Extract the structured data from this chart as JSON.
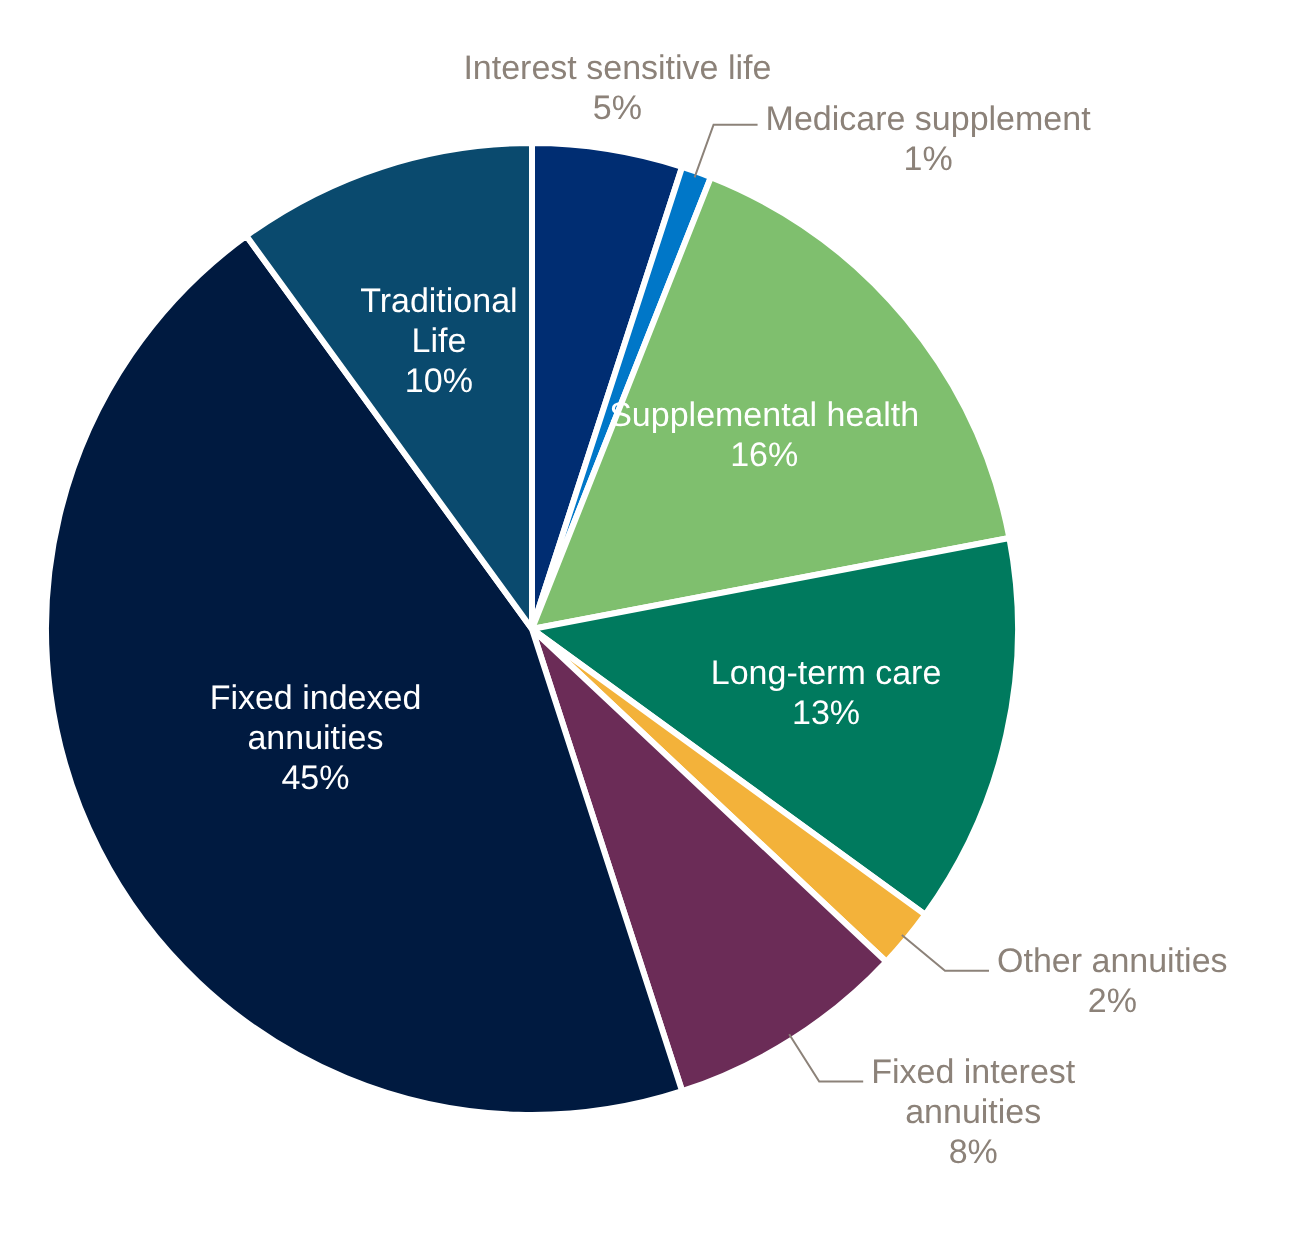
{
  "chart_data": {
    "type": "pie",
    "categories": [
      "Interest sensitive life",
      "Medicare supplement",
      "Supplemental health",
      "Long-term care",
      "Other annuities",
      "Fixed interest\nannuities",
      "Fixed indexed\nannuities",
      "Traditional\nLife"
    ],
    "values": [
      5,
      1,
      16,
      13,
      2,
      8,
      45,
      10
    ],
    "colors": [
      "#002d72",
      "#0077c8",
      "#7fbf6e",
      "#007a5e",
      "#f3b23a",
      "#6b2c57",
      "#001a40",
      "#0a4a6e"
    ],
    "value_labels": [
      "5%",
      "1%",
      "16%",
      "13%",
      "2%",
      "8%",
      "45%",
      "10%"
    ]
  }
}
